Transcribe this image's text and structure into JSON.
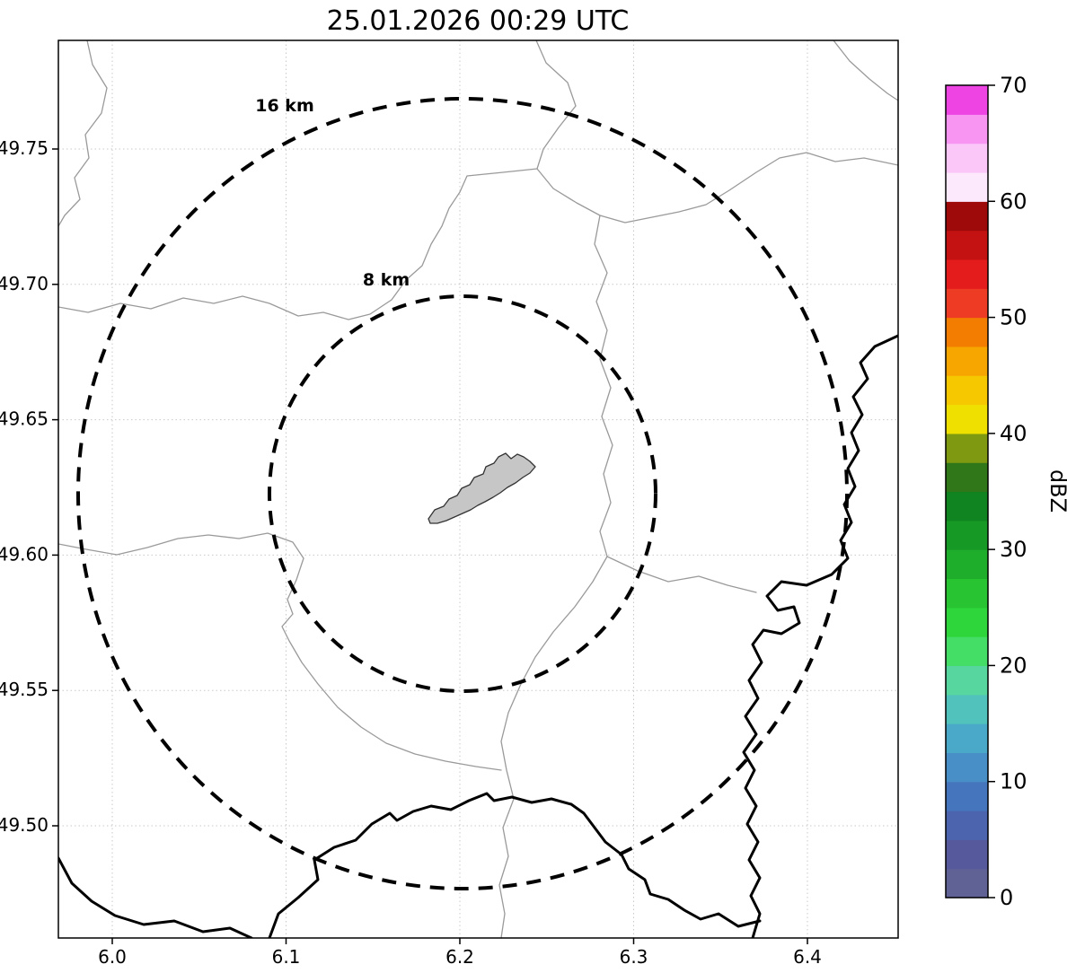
{
  "figure": {
    "title": "25.01.2026 00:29 UTC"
  },
  "axes": {
    "x_tick_labels": [
      "6.0",
      "6.1",
      "6.2",
      "6.3",
      "6.4"
    ],
    "y_tick_labels": [
      "49.75",
      "49.70",
      "49.65",
      "49.60",
      "49.55",
      "49.50"
    ]
  },
  "rings": [
    {
      "label": "16 km"
    },
    {
      "label": "8 km"
    }
  ],
  "colorbar": {
    "label": "dBZ",
    "tick_labels_bottom_to_top": [
      "0",
      "10",
      "20",
      "30",
      "40",
      "50",
      "60",
      "70"
    ],
    "colors_bottom_to_top": [
      "#606296",
      "#565a9c",
      "#4b64ad",
      "#4575bd",
      "#478fc6",
      "#4aa8c8",
      "#52c2bd",
      "#57d6a0",
      "#44dd66",
      "#2ed63c",
      "#28c431",
      "#1fae2b",
      "#179a25",
      "#108420",
      "#2f7718",
      "#7f9a10",
      "#f0e000",
      "#f6c800",
      "#f7a600",
      "#f27d00",
      "#ee3c24",
      "#e51c1c",
      "#c41212",
      "#9e0909",
      "#fce9fc",
      "#fbc7f9",
      "#f895f2",
      "#ee44e4"
    ]
  },
  "chart_data": {
    "type": "map",
    "title": "25.01.2026 00:29 UTC",
    "x_axis": {
      "ticks": [
        6.0,
        6.1,
        6.2,
        6.3,
        6.4
      ]
    },
    "y_axis": {
      "ticks": [
        49.75,
        49.7,
        49.65,
        49.6,
        49.55,
        49.5
      ]
    },
    "range_rings": [
      {
        "radius_km": 8,
        "label": "8 km"
      },
      {
        "radius_km": 16,
        "label": "16 km"
      }
    ],
    "colorbar": {
      "label": "dBZ",
      "min": 0,
      "max": 70,
      "ticks": [
        0,
        10,
        20,
        30,
        40,
        50,
        60,
        70
      ]
    },
    "radar_echoes": "none visible",
    "features": [
      "thick black country borders",
      "thin gray river/boundary lines",
      "gray city-area polygon at ring center"
    ],
    "grid": true,
    "legend_position": "right colorbar"
  }
}
